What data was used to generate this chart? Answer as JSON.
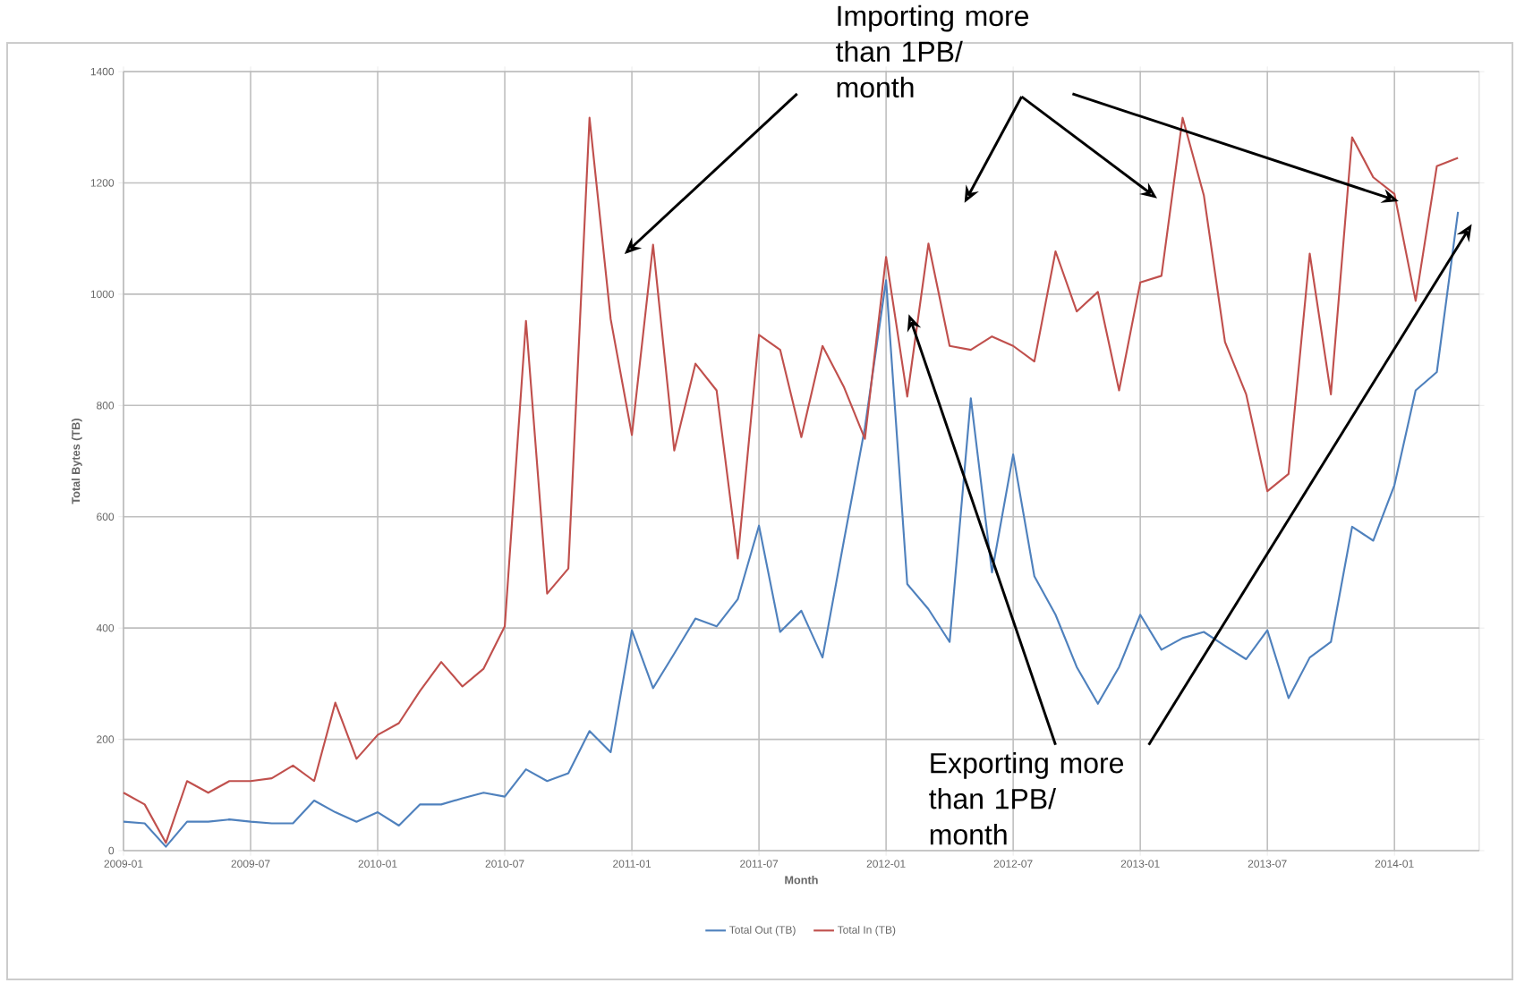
{
  "chart_data": {
    "type": "line",
    "xlabel": "Month",
    "ylabel": "Total Bytes (TB)",
    "x": [
      "2009-01",
      "2009-02",
      "2009-03",
      "2009-04",
      "2009-05",
      "2009-06",
      "2009-07",
      "2009-08",
      "2009-09",
      "2009-10",
      "2009-11",
      "2009-12",
      "2010-01",
      "2010-02",
      "2010-03",
      "2010-04",
      "2010-05",
      "2010-06",
      "2010-07",
      "2010-08",
      "2010-09",
      "2010-10",
      "2010-11",
      "2010-12",
      "2011-01",
      "2011-02",
      "2011-03",
      "2011-04",
      "2011-05",
      "2011-06",
      "2011-07",
      "2011-08",
      "2011-09",
      "2011-10",
      "2011-11",
      "2011-12",
      "2012-01",
      "2012-02",
      "2012-03",
      "2012-04",
      "2012-05",
      "2012-06",
      "2012-07",
      "2012-08",
      "2012-09",
      "2012-10",
      "2012-11",
      "2012-12",
      "2013-01",
      "2013-02",
      "2013-03",
      "2013-04",
      "2013-05",
      "2013-06",
      "2013-07",
      "2013-08",
      "2013-09",
      "2013-10",
      "2013-11",
      "2013-12",
      "2014-01",
      "2014-02",
      "2014-03",
      "2014-04"
    ],
    "series": [
      {
        "name": "Total Out (TB)",
        "color": "#4f81bd",
        "values": [
          52,
          49,
          7,
          52,
          52,
          56,
          52,
          49,
          49,
          90,
          69,
          52,
          69,
          45,
          83,
          83,
          94,
          104,
          97,
          146,
          125,
          139,
          215,
          177,
          396,
          292,
          354,
          417,
          403,
          452,
          584,
          393,
          431,
          347,
          555,
          760,
          1025,
          479,
          434,
          375,
          813,
          500,
          712,
          493,
          424,
          330,
          264,
          330,
          424,
          361,
          382,
          393,
          368,
          344,
          396,
          274,
          347,
          375,
          582,
          557,
          657,
          827,
          860,
          1148
        ]
      },
      {
        "name": "Total In (TB)",
        "color": "#c0504d",
        "values": [
          104,
          83,
          14,
          125,
          104,
          125,
          125,
          130,
          153,
          125,
          266,
          165,
          208,
          229,
          287,
          339,
          295,
          327,
          403,
          952,
          462,
          507,
          1317,
          955,
          747,
          1089,
          719,
          875,
          827,
          525,
          927,
          900,
          743,
          907,
          834,
          740,
          1067,
          816,
          1091,
          907,
          900,
          924,
          907,
          879,
          1077,
          969,
          1004,
          827,
          1021,
          1033,
          1317,
          1178,
          914,
          820,
          646,
          677,
          1073,
          820,
          1282,
          1210,
          1180,
          988,
          1230,
          1245
        ]
      }
    ],
    "xlim": [
      "2009-01",
      "2014-05"
    ],
    "xticks": [
      "2009-01",
      "2009-07",
      "2010-01",
      "2010-07",
      "2011-01",
      "2011-07",
      "2012-01",
      "2012-07",
      "2013-01",
      "2013-07",
      "2014-01"
    ],
    "ylim": [
      0,
      1400
    ],
    "yticks": [
      0,
      200,
      400,
      600,
      800,
      1000,
      1200,
      1400
    ],
    "grid": true,
    "legend": "bottom",
    "marker": "none",
    "line_style": "solid",
    "annotations": [
      "Importing more than 1PB/ month",
      "Exporting more than 1PB/ month"
    ]
  }
}
